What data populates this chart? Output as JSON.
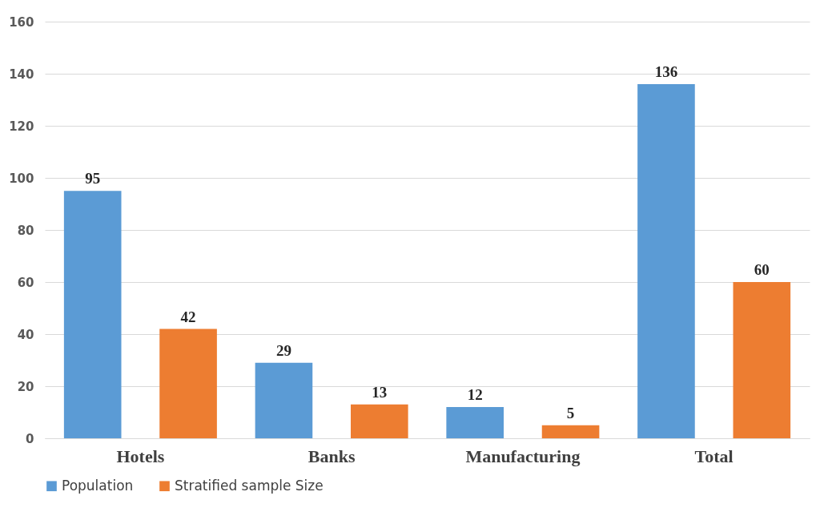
{
  "chart_data": {
    "type": "bar",
    "categories": [
      "Hotels",
      "Banks",
      "Manufacturing",
      "Total"
    ],
    "series": [
      {
        "name": "Population",
        "color": "#5b9bd5",
        "values": [
          95,
          29,
          12,
          136
        ]
      },
      {
        "name": "Stratified sample Size",
        "color": "#ed7d31",
        "values": [
          42,
          13,
          5,
          60
        ]
      }
    ],
    "ylim": [
      0,
      160
    ],
    "yticks": [
      0,
      20,
      40,
      60,
      80,
      100,
      120,
      140,
      160
    ],
    "grid": "y",
    "legend": "bottom",
    "data_labels": true
  }
}
